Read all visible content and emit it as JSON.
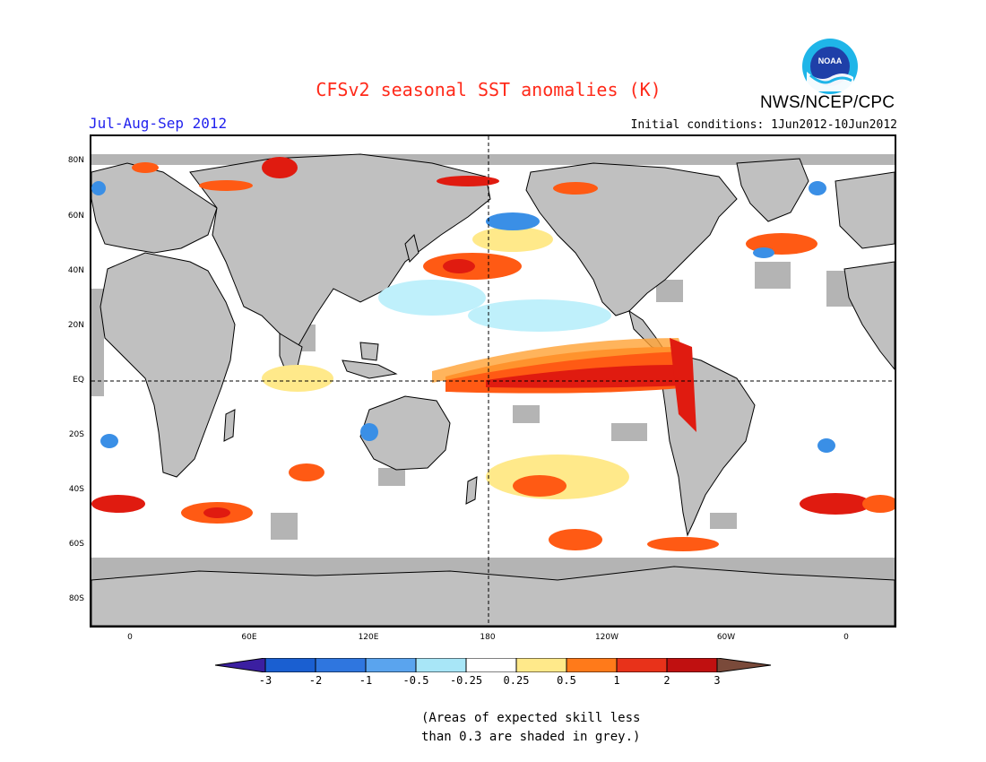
{
  "header": {
    "title": "CFSv2 seasonal SST anomalies (K)",
    "season": "Jul-Aug-Sep 2012",
    "initial_conditions": "Initial conditions: 1Jun2012-10Jun2012",
    "agency": "NWS/NCEP/CPC",
    "logo_text": "NOAA"
  },
  "map": {
    "lat_labels": [
      "80N",
      "60N",
      "40N",
      "20N",
      "EQ",
      "20S",
      "40S",
      "60S",
      "80S"
    ],
    "lon_labels": [
      "0",
      "60E",
      "120E",
      "180",
      "120W",
      "60W",
      "0"
    ],
    "colors": {
      "land": "#c0c0c0",
      "low_skill": "#b4b4b4",
      "ocean_neutral": "#ffffff",
      "neg_3": "#3b1fa1",
      "neg_2": "#1a5fd1",
      "neg_1": "#3a8fe6",
      "neg_05": "#7fbff2",
      "neg_025": "#bff0fb",
      "pos_025": "#ffe98a",
      "pos_05": "#ffa133",
      "pos_1": "#ff5a14",
      "pos_2": "#e01b10",
      "pos_3": "#a50f0f"
    }
  },
  "colorbar": {
    "labels": [
      "-3",
      "-2",
      "-1",
      "-0.5",
      "-0.25",
      "0.25",
      "0.5",
      "1",
      "2",
      "3"
    ],
    "colors": [
      "#3b1fa1",
      "#1a5fd1",
      "#2f76df",
      "#5aa4ee",
      "#a8e6f7",
      "#ffffff",
      "#ffe98a",
      "#ff7a1a",
      "#e8321a",
      "#c01010",
      "#a50f0f",
      "#7a4a3a"
    ]
  },
  "note": {
    "line1": "(Areas of expected skill less",
    "line2": "than 0.3 are shaded in grey.)"
  }
}
